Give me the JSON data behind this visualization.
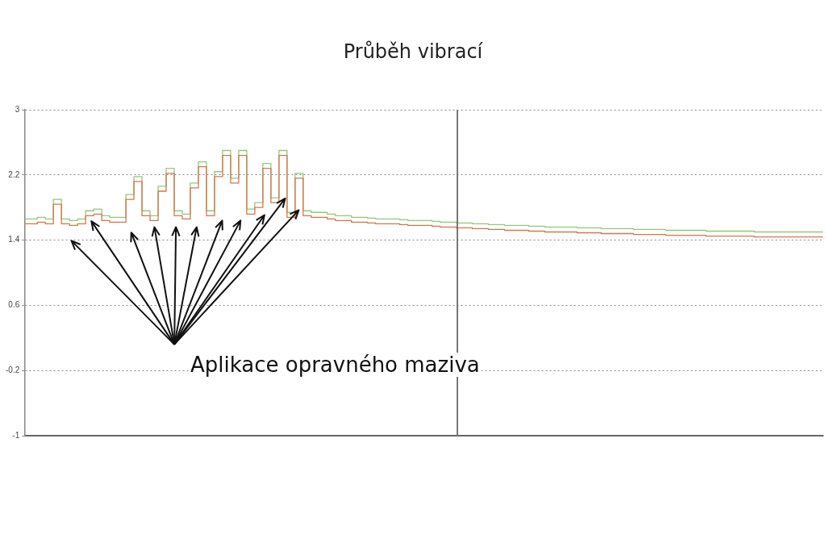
{
  "chart_data": {
    "type": "step",
    "title": "Průběh vibrací",
    "annotations": [
      "Aplikace opravného maziva"
    ],
    "categories": [
      null,
      null,
      null,
      null,
      null,
      null,
      null,
      null,
      null,
      null,
      null,
      null,
      null,
      null,
      null,
      null,
      null,
      null,
      null,
      null,
      null,
      null,
      null,
      null,
      null,
      null,
      null,
      null,
      null,
      null,
      null,
      null,
      null,
      null,
      null,
      null,
      null,
      null,
      null,
      null,
      null,
      null,
      null,
      null,
      null,
      null,
      null,
      null,
      null,
      null,
      null,
      null,
      null,
      null,
      null,
      null,
      null,
      null,
      null,
      null,
      null,
      null,
      null,
      null,
      null,
      null,
      null,
      null,
      null,
      null,
      null,
      null,
      null,
      null,
      null,
      null,
      null,
      null,
      null,
      null,
      null,
      null,
      null,
      null,
      null,
      null,
      null,
      null,
      null,
      null,
      null,
      null,
      null,
      null,
      null,
      null,
      null,
      null,
      null,
      null
    ],
    "series": [
      {
        "color": "#d9744a",
        "values": [
          1.6,
          1.6,
          1.62,
          1.6,
          1.84,
          1.6,
          1.58,
          1.6,
          1.7,
          1.72,
          1.64,
          1.62,
          1.62,
          1.9,
          2.12,
          1.7,
          1.64,
          2.0,
          2.22,
          1.7,
          1.66,
          2.04,
          2.3,
          1.7,
          2.18,
          2.44,
          2.1,
          2.44,
          1.72,
          1.8,
          2.28,
          1.86,
          2.44,
          1.68,
          2.16,
          1.7,
          1.68,
          1.68,
          1.66,
          1.64,
          1.64,
          1.62,
          1.62,
          1.61,
          1.6,
          1.6,
          1.6,
          1.59,
          1.58,
          1.58,
          1.58,
          1.57,
          1.56,
          1.56,
          1.55,
          1.55,
          1.54,
          1.54,
          1.53,
          1.53,
          1.52,
          1.52,
          1.52,
          1.51,
          1.51,
          1.5,
          1.5,
          1.5,
          1.5,
          1.49,
          1.49,
          1.49,
          1.48,
          1.48,
          1.48,
          1.48,
          1.47,
          1.47,
          1.47,
          1.47,
          1.46,
          1.46,
          1.46,
          1.46,
          1.46,
          1.45,
          1.45,
          1.45,
          1.45,
          1.45,
          1.45,
          1.44,
          1.44,
          1.44,
          1.44,
          1.44,
          1.44,
          1.44,
          1.44,
          1.44
        ]
      },
      {
        "color": "#8fca7a",
        "values": [
          1.66,
          1.66,
          1.68,
          1.66,
          1.9,
          1.66,
          1.64,
          1.66,
          1.76,
          1.78,
          1.7,
          1.68,
          1.68,
          1.96,
          2.18,
          1.76,
          1.7,
          2.06,
          2.28,
          1.76,
          1.72,
          2.1,
          2.36,
          1.76,
          2.24,
          2.5,
          2.16,
          2.5,
          1.78,
          1.86,
          2.34,
          1.92,
          2.5,
          1.74,
          2.22,
          1.76,
          1.74,
          1.74,
          1.72,
          1.7,
          1.7,
          1.68,
          1.68,
          1.67,
          1.66,
          1.66,
          1.66,
          1.65,
          1.64,
          1.64,
          1.64,
          1.63,
          1.62,
          1.62,
          1.61,
          1.61,
          1.6,
          1.6,
          1.59,
          1.59,
          1.58,
          1.58,
          1.58,
          1.57,
          1.57,
          1.56,
          1.56,
          1.56,
          1.56,
          1.55,
          1.55,
          1.55,
          1.54,
          1.54,
          1.54,
          1.54,
          1.53,
          1.53,
          1.53,
          1.53,
          1.52,
          1.52,
          1.52,
          1.52,
          1.52,
          1.51,
          1.51,
          1.51,
          1.51,
          1.51,
          1.51,
          1.5,
          1.5,
          1.5,
          1.5,
          1.5,
          1.5,
          1.5,
          1.5,
          1.5
        ]
      }
    ],
    "ylim": [
      -1,
      3
    ],
    "yticks": [
      3,
      2.2,
      1.4,
      0.6,
      -0.2,
      -1
    ],
    "grid": "y",
    "legend": false,
    "tick_labels": "y",
    "marker": "none"
  }
}
